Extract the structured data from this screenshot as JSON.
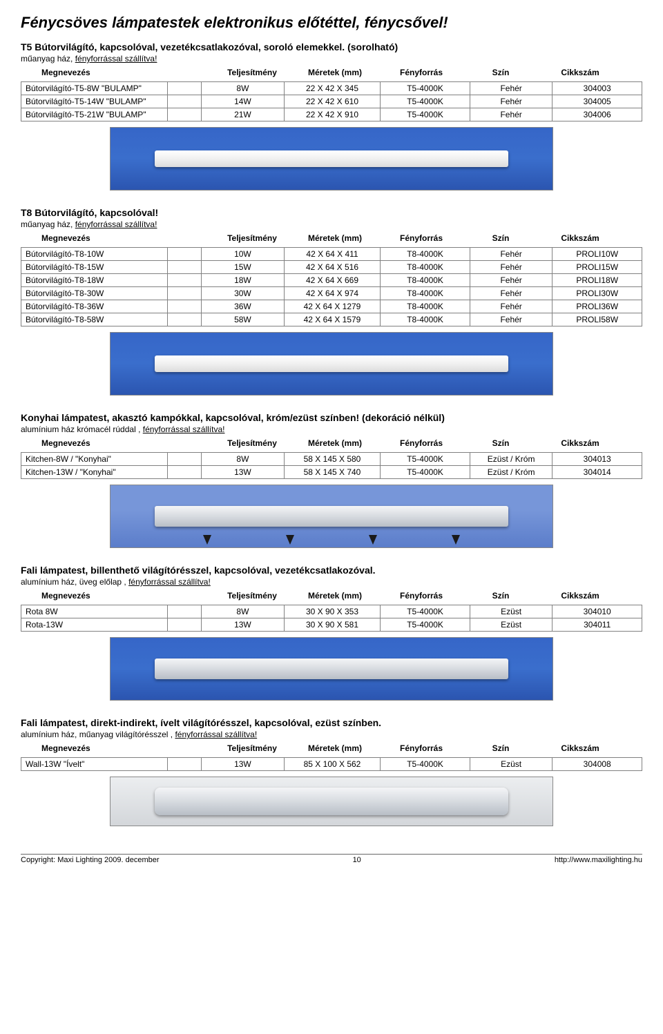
{
  "page": {
    "title": "Fénycsöves lámpatestek elektronikus előtéttel, fénycsővel!",
    "footer_left": "Copyright: Maxi Lighting 2009. december",
    "footer_center": "10",
    "footer_right": "http://www.maxilighting.hu"
  },
  "headers": {
    "name": "Megnevezés",
    "power": "Teljesítmény",
    "dims": "Méretek (mm)",
    "source": "Fényforrás",
    "color": "Szín",
    "code": "Cikkszám"
  },
  "sec1": {
    "title": "T5 Bútorvilágító, kapcsolóval, vezetékcsatlakozóval, soroló elemekkel. (sorolható)",
    "sub1a": "műanyag ház, ",
    "sub1b": "fényforrással szállítva!",
    "rows": [
      {
        "name": "Bútorvilágító-T5-8W \"BULAMP\"",
        "pow": "8W",
        "dim": "22 X 42 X 345",
        "src": "T5-4000K",
        "col": "Fehér",
        "code": "304003"
      },
      {
        "name": "Bútorvilágító-T5-14W \"BULAMP\"",
        "pow": "14W",
        "dim": "22 X 42 X 610",
        "src": "T5-4000K",
        "col": "Fehér",
        "code": "304005"
      },
      {
        "name": "Bútorvilágító-T5-21W \"BULAMP\"",
        "pow": "21W",
        "dim": "22 X 42 X 910",
        "src": "T5-4000K",
        "col": "Fehér",
        "code": "304006"
      }
    ]
  },
  "sec2": {
    "title": "T8 Bútorvilágító, kapcsolóval!",
    "sub1a": "műanyag ház, ",
    "sub1b": "fényforrással szállítva!",
    "rows": [
      {
        "name": "Bútorvilágító-T8-10W",
        "pow": "10W",
        "dim": "42 X 64 X 411",
        "src": "T8-4000K",
        "col": "Fehér",
        "code": "PROLI10W"
      },
      {
        "name": "Bútorvilágító-T8-15W",
        "pow": "15W",
        "dim": "42 X 64 X 516",
        "src": "T8-4000K",
        "col": "Fehér",
        "code": "PROLI15W"
      },
      {
        "name": "Bútorvilágító-T8-18W",
        "pow": "18W",
        "dim": "42 X 64 X 669",
        "src": "T8-4000K",
        "col": "Fehér",
        "code": "PROLI18W"
      },
      {
        "name": "Bútorvilágító-T8-30W",
        "pow": "30W",
        "dim": "42 X 64 X 974",
        "src": "T8-4000K",
        "col": "Fehér",
        "code": "PROLI30W"
      },
      {
        "name": "Bútorvilágító-T8-36W",
        "pow": "36W",
        "dim": "42 X 64 X 1279",
        "src": "T8-4000K",
        "col": "Fehér",
        "code": "PROLI36W"
      },
      {
        "name": "Bútorvilágító-T8-58W",
        "pow": "58W",
        "dim": "42 X 64 X 1579",
        "src": "T8-4000K",
        "col": "Fehér",
        "code": "PROLI58W"
      }
    ]
  },
  "sec3": {
    "title": "Konyhai lámpatest, akasztó kampókkal, kapcsolóval, króm/ezüst színben! (dekoráció nélkül)",
    "sub1a": "alumínium ház krómacél rúddal , ",
    "sub1b": "fényforrással szállítva!",
    "rows": [
      {
        "name": "Kitchen-8W / \"Konyhai\"",
        "pow": "8W",
        "dim": "58 X 145 X 580",
        "src": "T5-4000K",
        "col": "Ezüst / Króm",
        "code": "304013"
      },
      {
        "name": "Kitchen-13W / \"Konyhai\"",
        "pow": "13W",
        "dim": "58 X 145 X 740",
        "src": "T5-4000K",
        "col": "Ezüst / Króm",
        "code": "304014"
      }
    ]
  },
  "sec4": {
    "title": "Fali lámpatest, billenthető világítórésszel, kapcsolóval, vezetékcsatlakozóval.",
    "sub1a": "alumínium ház, üveg előlap , ",
    "sub1b": "fényforrással szállítva!",
    "rows": [
      {
        "name": "Rota 8W",
        "pow": "8W",
        "dim": "30 X 90 X 353",
        "src": "T5-4000K",
        "col": "Ezüst",
        "code": "304010"
      },
      {
        "name": "Rota-13W",
        "pow": "13W",
        "dim": "30 X 90 X 581",
        "src": "T5-4000K",
        "col": "Ezüst",
        "code": "304011"
      }
    ]
  },
  "sec5": {
    "title": "Fali lámpatest, direkt-indirekt, ívelt világítórésszel, kapcsolóval, ezüst színben.",
    "sub1a": "alumínium ház, műanyag világítórésszel , ",
    "sub1b": "fényforrással szállítva!",
    "rows": [
      {
        "name": "Wall-13W \"Ívelt\"",
        "pow": "13W",
        "dim": "85 X 100 X 562",
        "src": "T5-4000K",
        "col": "Ezüst",
        "code": "304008"
      }
    ]
  }
}
